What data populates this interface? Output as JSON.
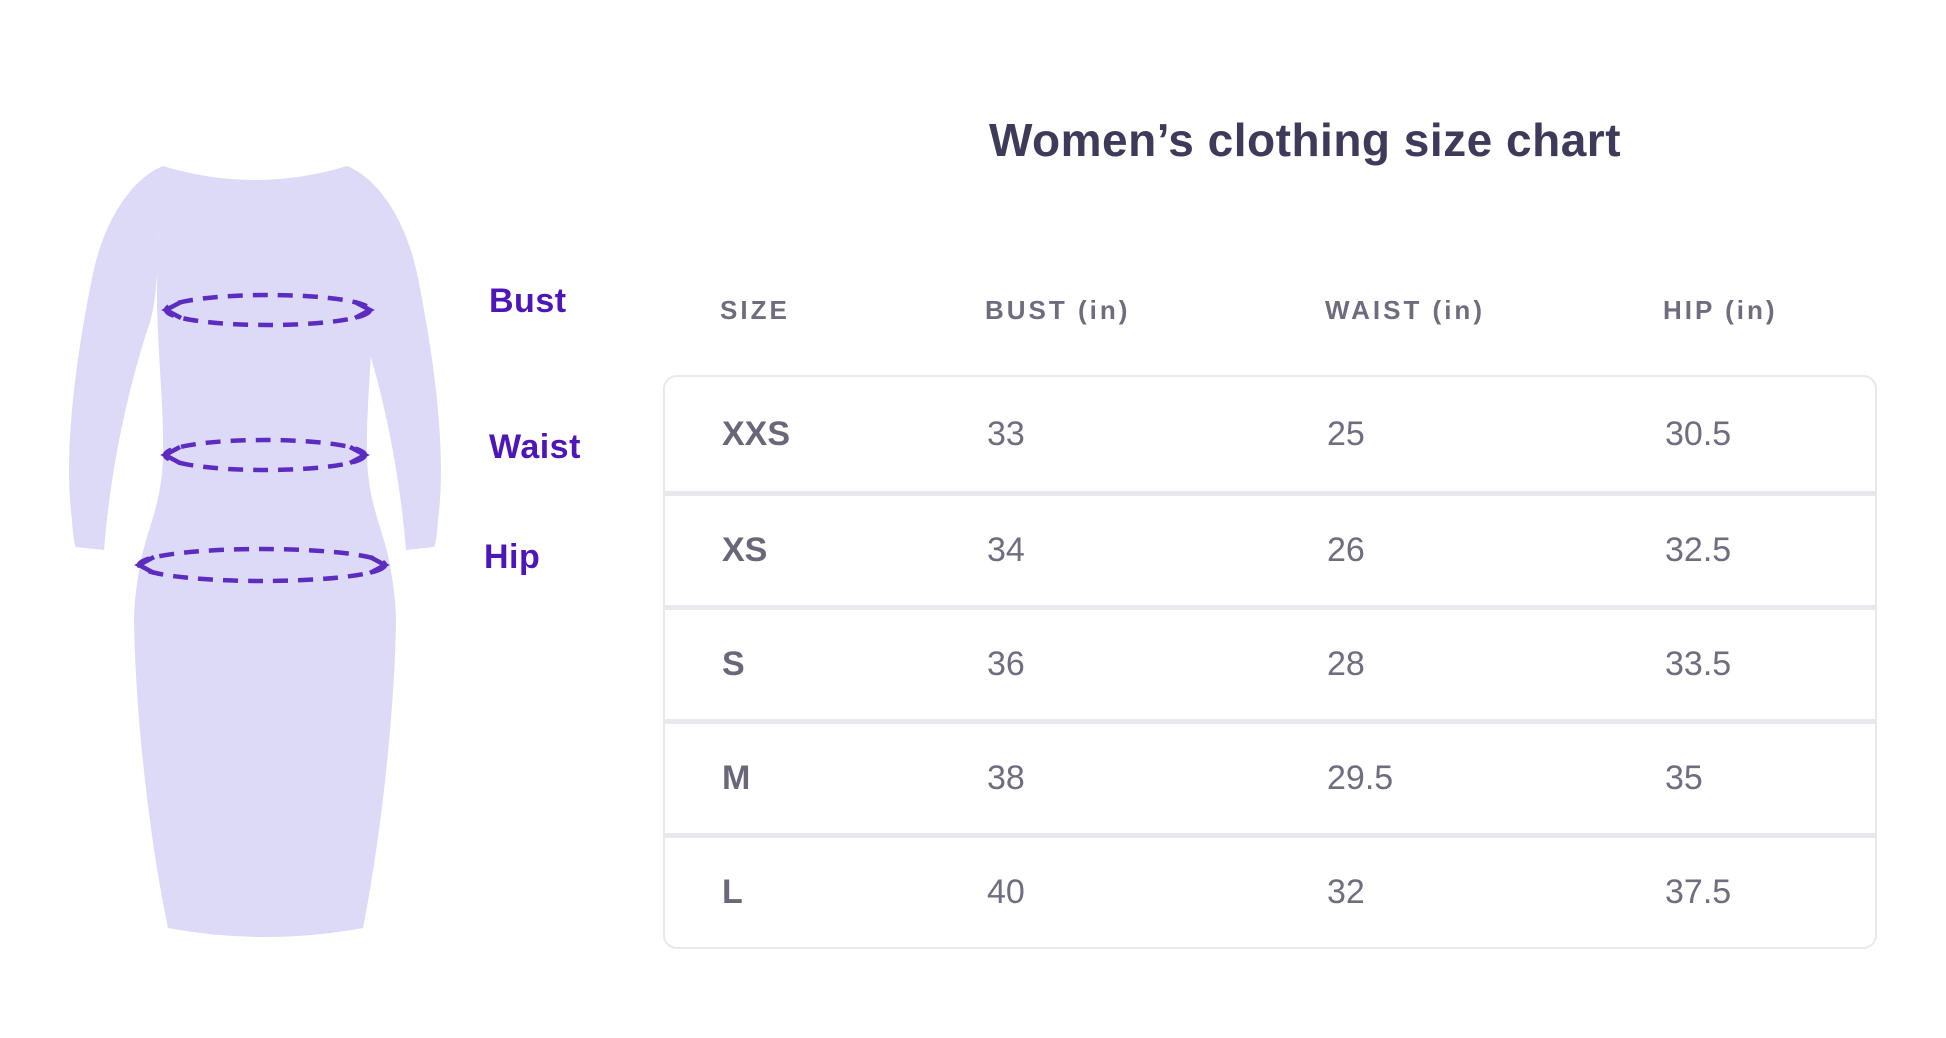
{
  "title": "Women’s clothing size chart",
  "figure": {
    "description": "dress silhouette with dashed measurement ellipses",
    "labels": [
      {
        "id": "bust",
        "text": "Bust"
      },
      {
        "id": "waist",
        "text": "Waist"
      },
      {
        "id": "hip",
        "text": "Hip"
      }
    ],
    "colors": {
      "dress_fill": "#dcdaf6",
      "measure_line": "#5c2bc0",
      "label_text": "#4c16b8"
    }
  },
  "table": {
    "columns": [
      "SIZE",
      "BUST (in)",
      "WAIST (in)",
      "HIP (in)"
    ],
    "rows": [
      {
        "size": "XXS",
        "bust": "33",
        "waist": "25",
        "hip": "30.5"
      },
      {
        "size": "XS",
        "bust": "34",
        "waist": "26",
        "hip": "32.5"
      },
      {
        "size": "S",
        "bust": "36",
        "waist": "28",
        "hip": "33.5"
      },
      {
        "size": "M",
        "bust": "38",
        "waist": "29.5",
        "hip": "35"
      },
      {
        "size": "L",
        "bust": "40",
        "waist": "32",
        "hip": "37.5"
      }
    ]
  },
  "chart_data": {
    "type": "table",
    "title": "Women’s clothing size chart",
    "columns": [
      "SIZE",
      "BUST (in)",
      "WAIST (in)",
      "HIP (in)"
    ],
    "rows": [
      [
        "XXS",
        33,
        25,
        30.5
      ],
      [
        "XS",
        34,
        26,
        32.5
      ],
      [
        "S",
        36,
        28,
        33.5
      ],
      [
        "M",
        38,
        29.5,
        35
      ],
      [
        "L",
        40,
        32,
        37.5
      ]
    ],
    "units": "inches",
    "annotations": [
      "Bust",
      "Waist",
      "Hip"
    ]
  }
}
